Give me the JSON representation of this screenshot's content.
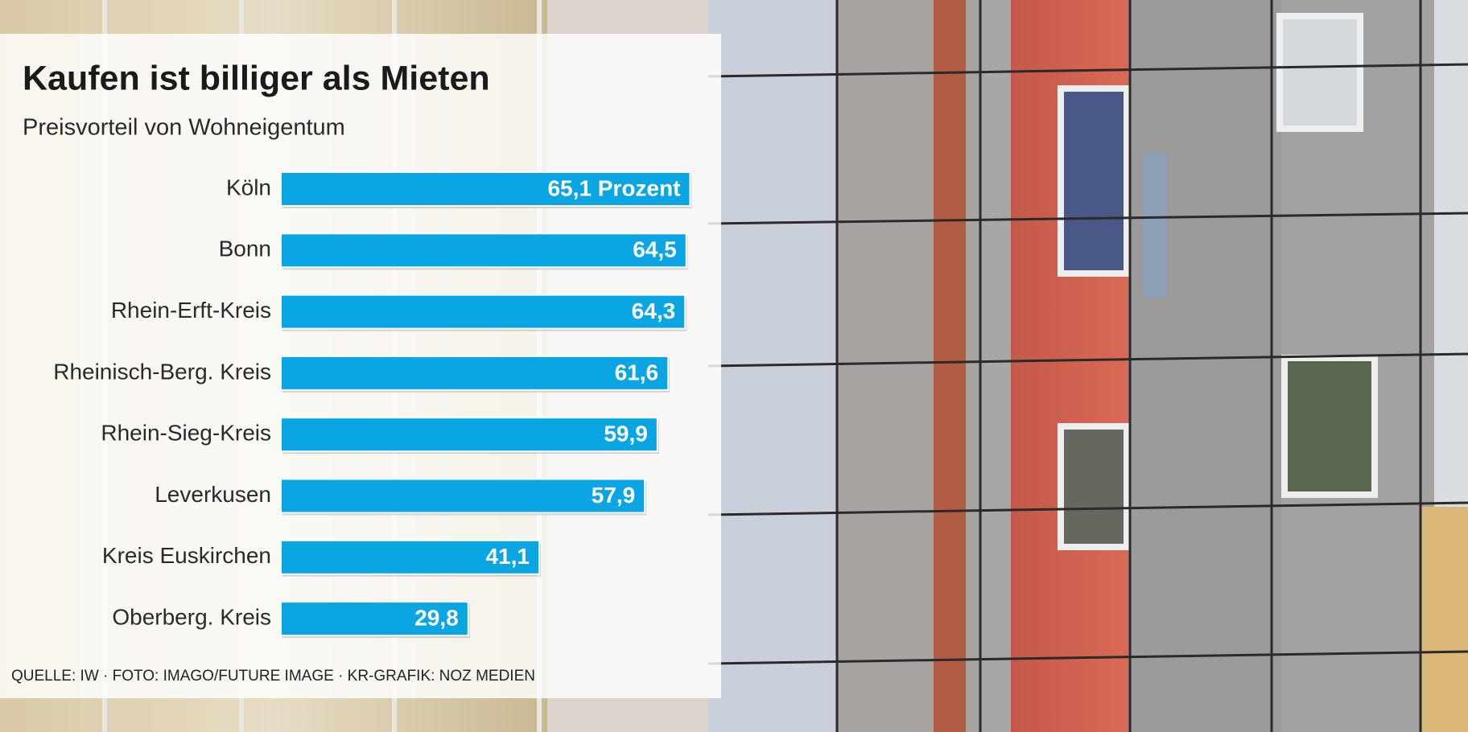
{
  "chart_data": {
    "type": "hbar",
    "title": "Kaufen ist billiger als Mieten",
    "subtitle": "Preisvorteil von Wohneigentum",
    "categories": [
      "Köln",
      "Bonn",
      "Rhein-Erft-Kreis",
      "Rheinisch-Berg. Kreis",
      "Rhein-Sieg-Kreis",
      "Leverkusen",
      "Kreis Euskirchen",
      "Oberberg. Kreis"
    ],
    "values": [
      65.1,
      64.5,
      64.3,
      61.6,
      59.9,
      57.9,
      41.1,
      29.8
    ],
    "value_labels": [
      "65,1 Prozent",
      "64,5",
      "64,3",
      "61,6",
      "59,9",
      "57,9",
      "41,1",
      "29,8"
    ],
    "color": "#0aa6e4",
    "source": "QUELLE: IW · FOTO: IMAGO/FUTURE IMAGE  · KR-GRAFIK: NOZ MEDIEN"
  }
}
